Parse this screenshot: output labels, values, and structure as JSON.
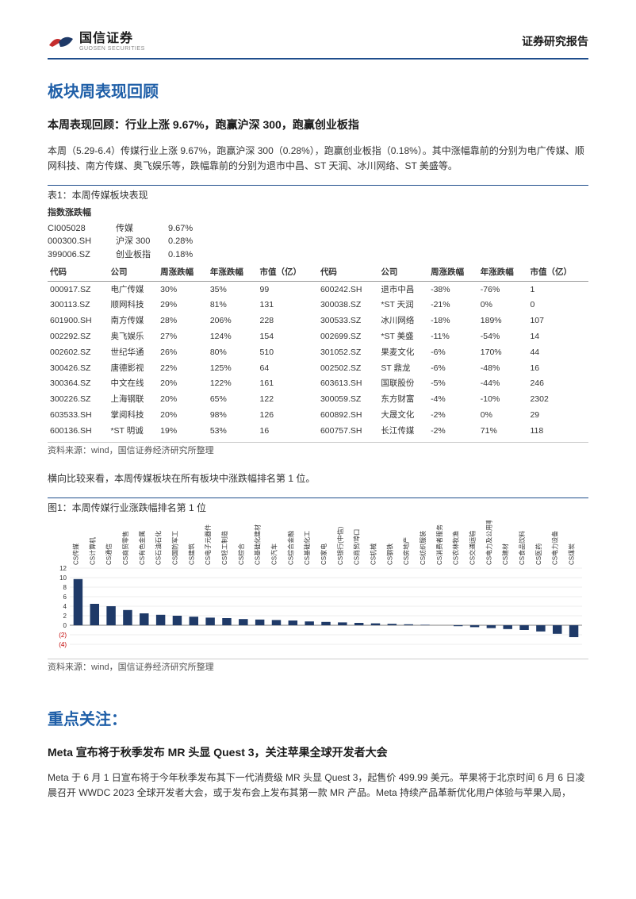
{
  "header": {
    "logo_cn": "国信证券",
    "logo_en": "GUOSEN SECURITIES",
    "right_label": "证券研究报告"
  },
  "section1": {
    "title": "板块周表现回顾",
    "subtitle": "本周表现回顾：行业上涨 9.67%，跑赢沪深 300，跑赢创业板指",
    "para1": "本周（5.29-6.4）传媒行业上涨 9.67%，跑赢沪深 300（0.28%），跑赢创业板指（0.18%）。其中涨幅靠前的分别为电广传媒、顺网科技、南方传媒、奥飞娱乐等，跌幅靠前的分别为退市中昌、ST 天润、冰川网络、ST 美盛等。",
    "table_caption": "表1：本周传媒板块表现",
    "index_header": "指数涨跌幅",
    "indices": [
      {
        "code": "CI005028",
        "name": "传媒",
        "chg": "9.67%"
      },
      {
        "code": "000300.SH",
        "name": "沪深 300",
        "chg": "0.28%"
      },
      {
        "code": "399006.SZ",
        "name": "创业板指",
        "chg": "0.18%"
      }
    ],
    "columns_left": [
      "代码",
      "公司",
      "周涨跌幅",
      "年涨跌幅",
      "市值（亿）"
    ],
    "columns_right": [
      "代码",
      "公司",
      "周涨跌幅",
      "年涨跌幅",
      "市值（亿）"
    ],
    "gainers": [
      {
        "code": "000917.SZ",
        "name": "电广传媒",
        "wk": "30%",
        "yr": "35%",
        "cap": "99"
      },
      {
        "code": "300113.SZ",
        "name": "顺网科技",
        "wk": "29%",
        "yr": "81%",
        "cap": "131"
      },
      {
        "code": "601900.SH",
        "name": "南方传媒",
        "wk": "28%",
        "yr": "206%",
        "cap": "228"
      },
      {
        "code": "002292.SZ",
        "name": "奥飞娱乐",
        "wk": "27%",
        "yr": "124%",
        "cap": "154"
      },
      {
        "code": "002602.SZ",
        "name": "世纪华通",
        "wk": "26%",
        "yr": "80%",
        "cap": "510"
      },
      {
        "code": "300426.SZ",
        "name": "唐德影视",
        "wk": "22%",
        "yr": "125%",
        "cap": "64"
      },
      {
        "code": "300364.SZ",
        "name": "中文在线",
        "wk": "20%",
        "yr": "122%",
        "cap": "161"
      },
      {
        "code": "300226.SZ",
        "name": "上海钢联",
        "wk": "20%",
        "yr": "65%",
        "cap": "122"
      },
      {
        "code": "603533.SH",
        "name": "掌阅科技",
        "wk": "20%",
        "yr": "98%",
        "cap": "126"
      },
      {
        "code": "600136.SH",
        "name": "*ST 明诚",
        "wk": "19%",
        "yr": "53%",
        "cap": "16"
      }
    ],
    "losers": [
      {
        "code": "600242.SH",
        "name": "退市中昌",
        "wk": "-38%",
        "yr": "-76%",
        "cap": "1"
      },
      {
        "code": "300038.SZ",
        "name": "*ST 天润",
        "wk": "-21%",
        "yr": "0%",
        "cap": "0"
      },
      {
        "code": "300533.SZ",
        "name": "冰川网络",
        "wk": "-18%",
        "yr": "189%",
        "cap": "107"
      },
      {
        "code": "002699.SZ",
        "name": "*ST 美盛",
        "wk": "-11%",
        "yr": "-54%",
        "cap": "14"
      },
      {
        "code": "301052.SZ",
        "name": "果麦文化",
        "wk": "-6%",
        "yr": "170%",
        "cap": "44"
      },
      {
        "code": "002502.SZ",
        "name": "ST 鼎龙",
        "wk": "-6%",
        "yr": "-48%",
        "cap": "16"
      },
      {
        "code": "603613.SH",
        "name": "国联股份",
        "wk": "-5%",
        "yr": "-44%",
        "cap": "246"
      },
      {
        "code": "300059.SZ",
        "name": "东方财富",
        "wk": "-4%",
        "yr": "-10%",
        "cap": "2302"
      },
      {
        "code": "600892.SH",
        "name": "大晟文化",
        "wk": "-2%",
        "yr": "0%",
        "cap": "29"
      },
      {
        "code": "600757.SH",
        "name": "长江传媒",
        "wk": "-2%",
        "yr": "71%",
        "cap": "118"
      }
    ],
    "source": "资料来源：wind，国信证券经济研究所整理",
    "para2": "横向比较来看，本周传媒板块在所有板块中涨跌幅排名第 1 位。",
    "chart_caption": "图1：本周传媒行业涨跌幅排名第 1 位"
  },
  "chart": {
    "type": "bar",
    "ylim": [
      -4,
      12
    ],
    "ytick_step": 2,
    "yticks": [
      12,
      10,
      8,
      6,
      4,
      2,
      0,
      -2,
      -4
    ],
    "yticks_neg_color": "#c00000",
    "bar_color": "#1f3a68",
    "grid_color": "#d9d9d9",
    "axis_color": "#808080",
    "label_fontsize": 8,
    "categories": [
      "CS传媒",
      "CS计算机",
      "CS通信",
      "CS商贸零售",
      "CS有色金属",
      "CS石油石化",
      "CS国防军工",
      "CS建筑",
      "CS电子元器件",
      "CS轻工制造",
      "CS综合",
      "CS基础化建材",
      "CS汽车",
      "CS综合金融",
      "CS基础化工",
      "CS家电",
      "CS银行(中信)",
      "CS商贸/埠口",
      "CS机械",
      "CS钢铁",
      "CS房地产",
      "CS纺织服装",
      "CS消费者服务",
      "CS农林牧渔",
      "CS交通运输",
      "CS电力及公用事业",
      "CS建材",
      "CS食品饮料",
      "CS医药",
      "CS电力设备",
      "CS煤炭"
    ],
    "values": [
      9.7,
      4.5,
      4.0,
      3.2,
      2.5,
      2.2,
      2.0,
      1.8,
      1.6,
      1.5,
      1.3,
      1.2,
      1.1,
      1.0,
      0.8,
      0.7,
      0.6,
      0.5,
      0.4,
      0.3,
      0.2,
      0.1,
      0.0,
      -0.2,
      -0.4,
      -0.6,
      -0.8,
      -1.0,
      -1.3,
      -1.8,
      -2.5
    ],
    "source": "资料来源：wind，国信证券经济研究所整理"
  },
  "section2": {
    "title": "重点关注：",
    "subtitle": "Meta 宣布将于秋季发布 MR 头显 Quest 3，关注苹果全球开发者大会",
    "para1": "Meta 于 6 月 1 日宣布将于今年秋季发布其下一代消费级 MR 头显 Quest 3，起售价 499.99 美元。苹果将于北京时间 6 月 6 日凌晨召开 WWDC 2023 全球开发者大会，或于发布会上发布其第一款 MR 产品。Meta 持续产品革新优化用户体验与苹果入局，"
  }
}
